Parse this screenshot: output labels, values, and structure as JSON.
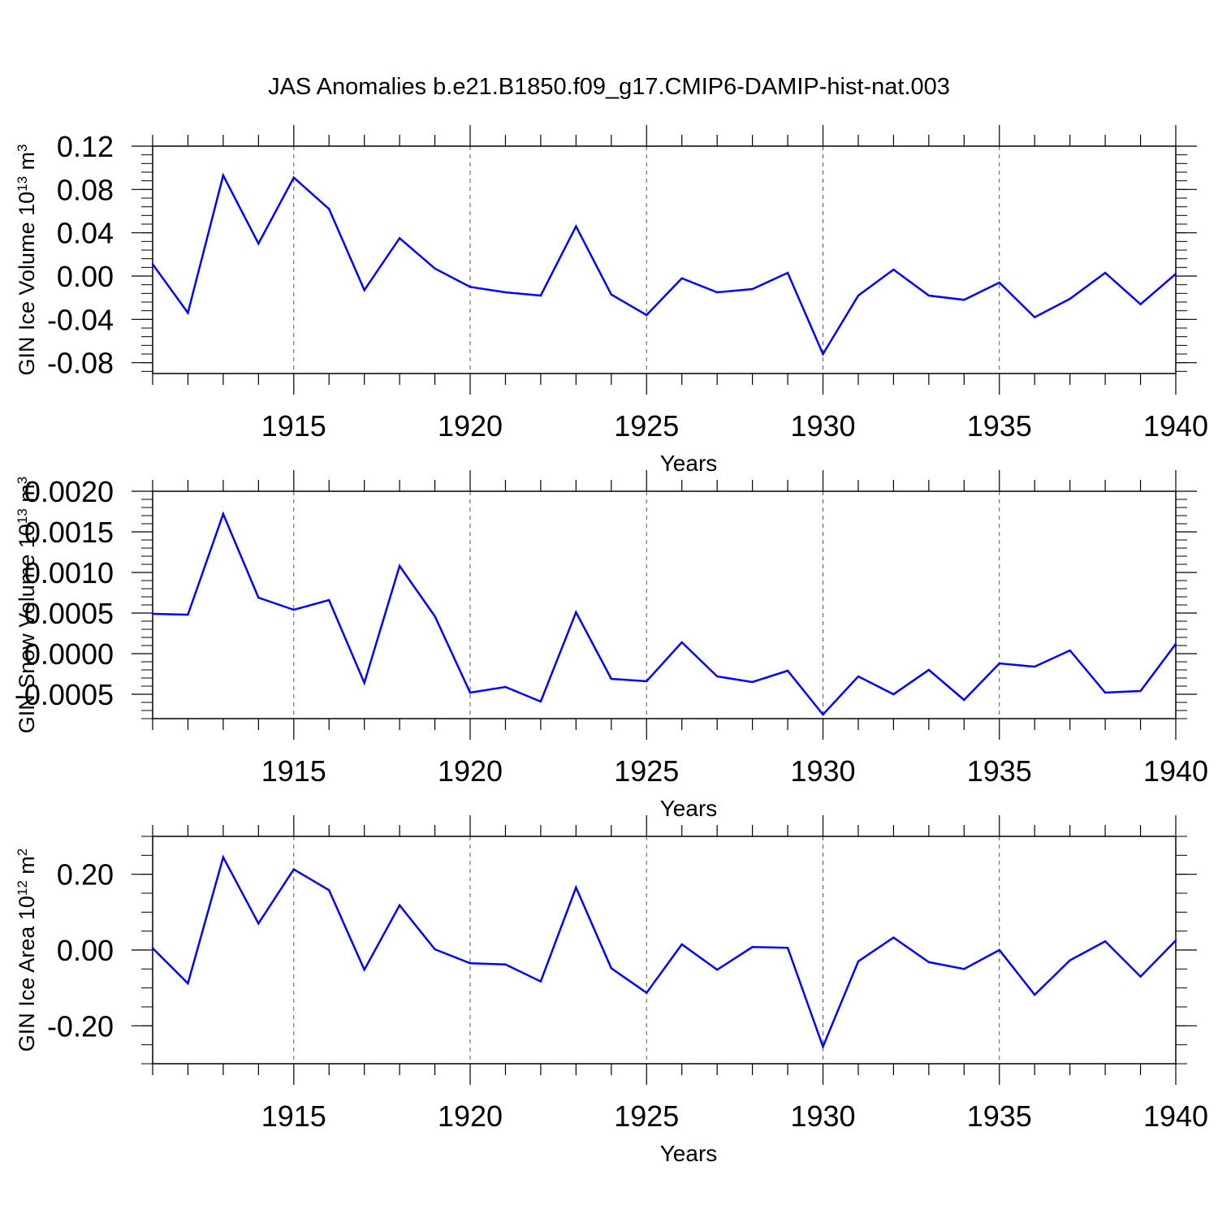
{
  "title": "JAS Anomalies b.e21.B1850.f09_g17.CMIP6-DAMIP-hist-nat.003",
  "line_color": "#0000ff",
  "chart_data": [
    {
      "type": "line",
      "ylabel_main": "GIN Ice Volume 10",
      "ylabel_exp": "13",
      "ylabel_unit": " m",
      "ylabel_unit_exp": "3",
      "xlabel": "Years",
      "xlim": [
        1911,
        1940
      ],
      "ylim": [
        -0.09,
        0.12
      ],
      "yticks": [
        -0.08,
        -0.04,
        0.0,
        0.04,
        0.08,
        0.12
      ],
      "ytick_labels": [
        "-0.08",
        "-0.04",
        "0.00",
        "0.04",
        "0.08",
        "0.12"
      ],
      "yminor_step": 0.008,
      "xticks": [
        1915,
        1920,
        1925,
        1930,
        1935,
        1940
      ],
      "xtick_labels": [
        "1915",
        "1920",
        "1925",
        "1930",
        "1935",
        "1940"
      ],
      "x": [
        1911,
        1912,
        1913,
        1914,
        1915,
        1916,
        1917,
        1918,
        1919,
        1920,
        1921,
        1922,
        1923,
        1924,
        1925,
        1926,
        1927,
        1928,
        1929,
        1930,
        1931,
        1932,
        1933,
        1934,
        1935,
        1936,
        1937,
        1938,
        1939,
        1940
      ],
      "series": [
        {
          "name": "GIN Ice Volume",
          "values": [
            0.011,
            -0.034,
            0.093,
            0.03,
            0.091,
            0.062,
            -0.013,
            0.035,
            0.007,
            -0.01,
            -0.015,
            -0.018,
            0.046,
            -0.017,
            -0.036,
            -0.002,
            -0.015,
            -0.012,
            0.003,
            -0.072,
            -0.018,
            0.006,
            -0.018,
            -0.022,
            -0.006,
            -0.038,
            -0.021,
            0.003,
            -0.026,
            0.002
          ]
        }
      ]
    },
    {
      "type": "line",
      "ylabel_main": "GIN Snow Volume 10",
      "ylabel_exp": "13",
      "ylabel_unit": " m",
      "ylabel_unit_exp": "3",
      "xlabel": "Years",
      "xlim": [
        1911,
        1940
      ],
      "ylim": [
        -0.0008,
        0.002
      ],
      "yticks": [
        -0.0005,
        0.0,
        0.0005,
        0.001,
        0.0015,
        0.002
      ],
      "ytick_labels": [
        "-0.0005",
        "0.0000",
        "0.0005",
        "0.0010",
        "0.0015",
        "0.0020"
      ],
      "yminor_step": 0.0001,
      "xticks": [
        1915,
        1920,
        1925,
        1930,
        1935,
        1940
      ],
      "xtick_labels": [
        "1915",
        "1920",
        "1925",
        "1930",
        "1935",
        "1940"
      ],
      "x": [
        1911,
        1912,
        1913,
        1914,
        1915,
        1916,
        1917,
        1918,
        1919,
        1920,
        1921,
        1922,
        1923,
        1924,
        1925,
        1926,
        1927,
        1928,
        1929,
        1930,
        1931,
        1932,
        1933,
        1934,
        1935,
        1936,
        1937,
        1938,
        1939,
        1940
      ],
      "series": [
        {
          "name": "GIN Snow Volume",
          "values": [
            0.00049,
            0.00048,
            0.00172,
            0.00069,
            0.00054,
            0.00066,
            -0.00036,
            0.00108,
            0.00046,
            -0.00048,
            -0.00041,
            -0.00059,
            0.00051,
            -0.00031,
            -0.00034,
            0.00014,
            -0.00028,
            -0.00035,
            -0.00021,
            -0.00075,
            -0.00028,
            -0.0005,
            -0.0002,
            -0.00057,
            -0.00012,
            -0.00016,
            4e-05,
            -0.00048,
            -0.00046,
            0.00012
          ]
        }
      ]
    },
    {
      "type": "line",
      "ylabel_main": "GIN Ice Area 10",
      "ylabel_exp": "12",
      "ylabel_unit": " m",
      "ylabel_unit_exp": "2",
      "xlabel": "Years",
      "xlim": [
        1911,
        1940
      ],
      "ylim": [
        -0.3,
        0.3
      ],
      "yticks": [
        -0.2,
        0.0,
        0.2
      ],
      "ytick_labels": [
        "-0.20",
        "0.00",
        "0.20"
      ],
      "yminor_step": 0.05,
      "xticks": [
        1915,
        1920,
        1925,
        1930,
        1935,
        1940
      ],
      "xtick_labels": [
        "1915",
        "1920",
        "1925",
        "1930",
        "1935",
        "1940"
      ],
      "x": [
        1911,
        1912,
        1913,
        1914,
        1915,
        1916,
        1917,
        1918,
        1919,
        1920,
        1921,
        1922,
        1923,
        1924,
        1925,
        1926,
        1927,
        1928,
        1929,
        1930,
        1931,
        1932,
        1933,
        1934,
        1935,
        1936,
        1937,
        1938,
        1939,
        1940
      ],
      "series": [
        {
          "name": "GIN Ice Area",
          "values": [
            0.005,
            -0.088,
            0.245,
            0.07,
            0.213,
            0.158,
            -0.052,
            0.118,
            0.002,
            -0.035,
            -0.038,
            -0.083,
            0.165,
            -0.048,
            -0.113,
            0.015,
            -0.052,
            0.008,
            0.006,
            -0.255,
            -0.03,
            0.033,
            -0.032,
            -0.05,
            0.0,
            -0.118,
            -0.027,
            0.023,
            -0.07,
            0.025
          ]
        }
      ]
    }
  ]
}
